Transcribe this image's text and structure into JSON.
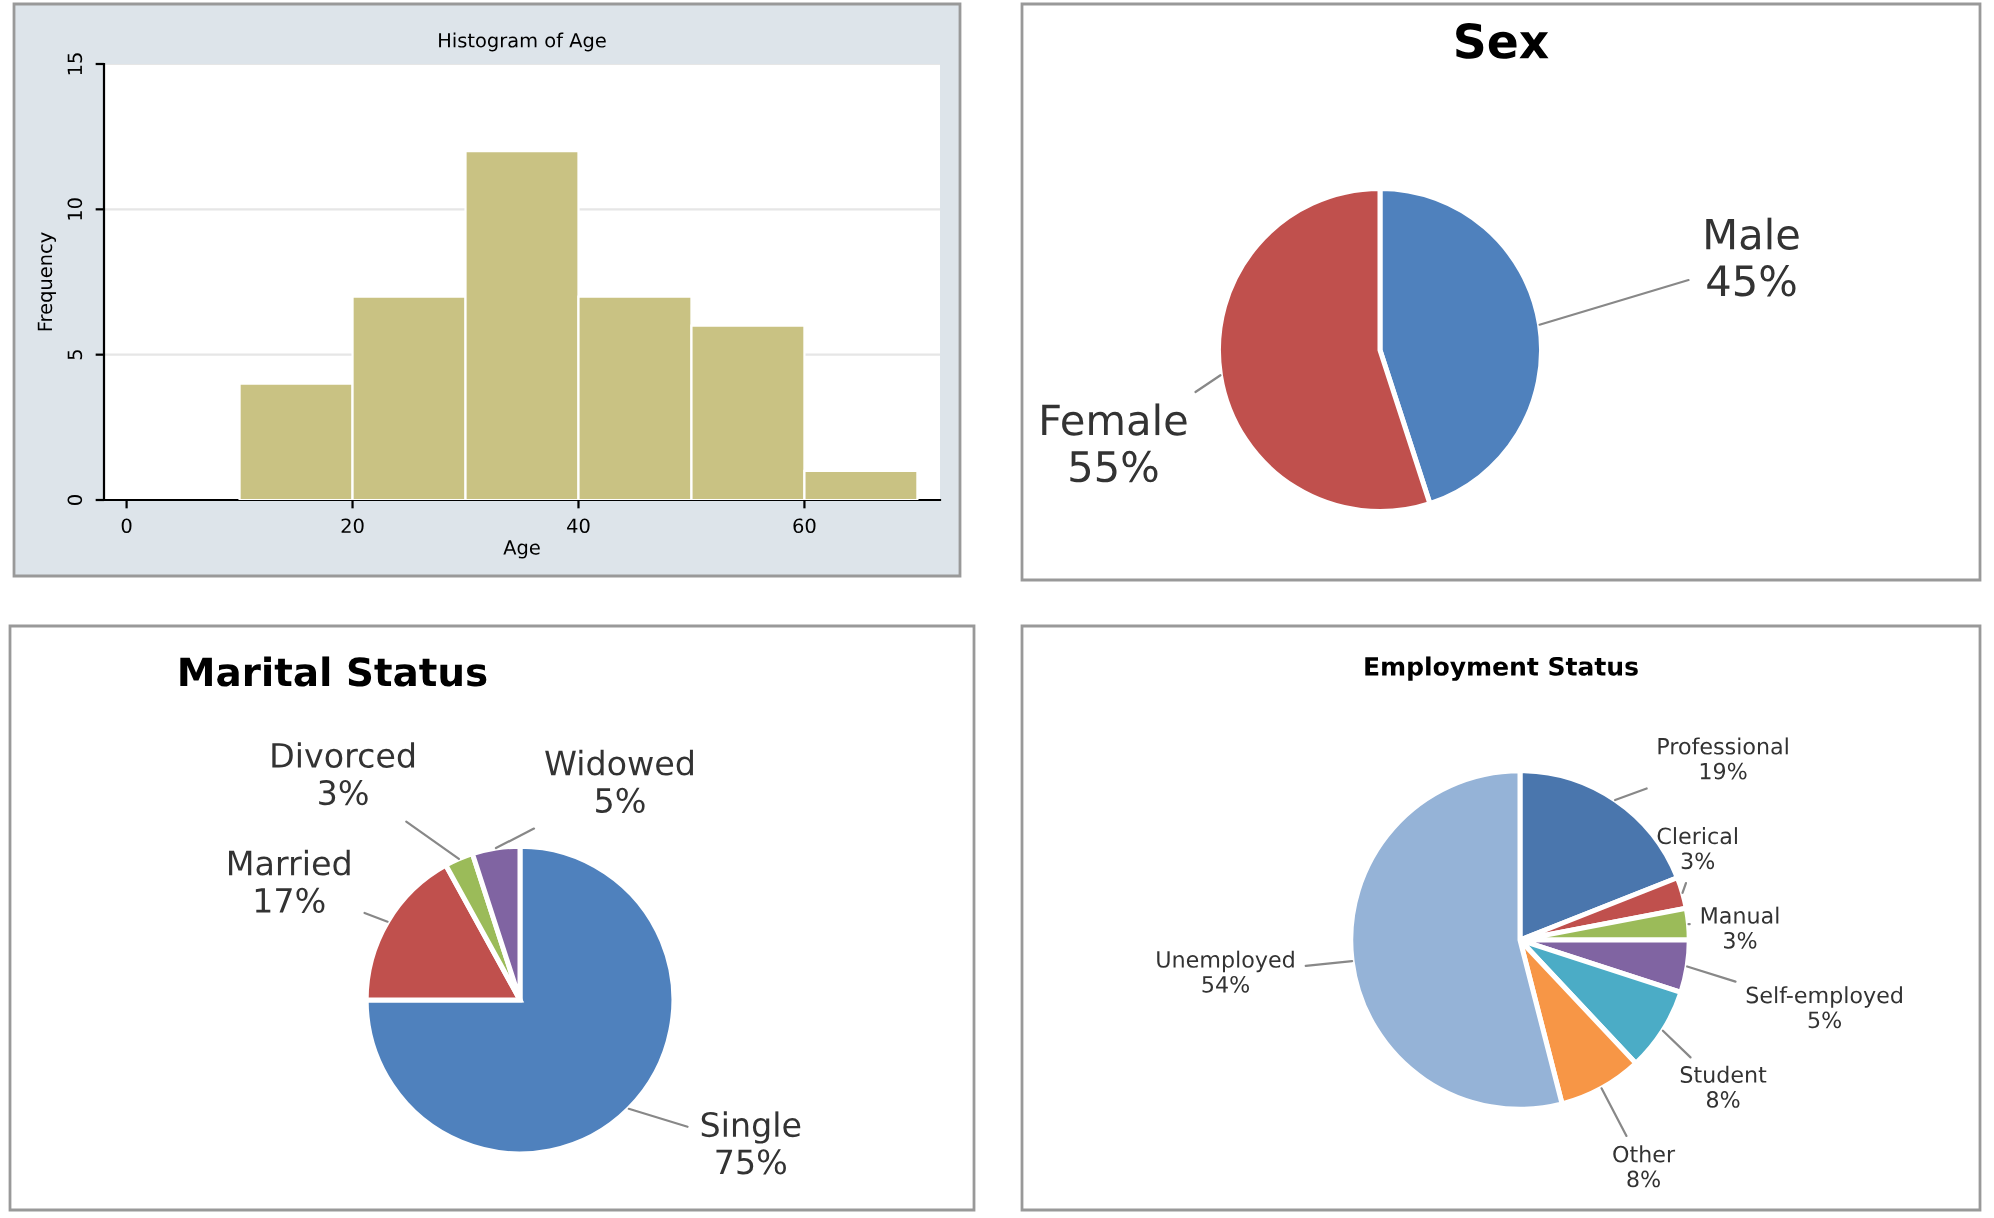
{
  "chart_data": [
    {
      "type": "histogram",
      "title": "Histogram of Age",
      "xlabel": "Age",
      "ylabel": "Frequency",
      "bins": [
        10,
        20,
        30,
        40,
        50,
        60,
        70
      ],
      "values": [
        4,
        7,
        12,
        7,
        6,
        1
      ],
      "color": "#c9c283",
      "xlim": [
        -2,
        72
      ],
      "ylim": [
        0,
        15
      ],
      "xticks": [
        0,
        20,
        40,
        60
      ],
      "yticks": [
        0,
        5,
        10,
        15
      ],
      "grid": "y"
    },
    {
      "type": "pie",
      "title": "Sex",
      "categories": [
        "Male",
        "Female"
      ],
      "values": [
        45,
        55
      ],
      "value_labels": [
        "45%",
        "55%"
      ],
      "colors": [
        "#4f81bd",
        "#c0504d"
      ]
    },
    {
      "type": "pie",
      "title": "Marital Status",
      "categories": [
        "Single",
        "Married",
        "Divorced",
        "Widowed"
      ],
      "values": [
        75,
        17,
        3,
        5
      ],
      "value_labels": [
        "75%",
        "17%",
        "3%",
        "5%"
      ],
      "colors": [
        "#4f81bd",
        "#c0504d",
        "#9bbb59",
        "#8064a2"
      ]
    },
    {
      "type": "pie",
      "title": "Employment Status",
      "categories": [
        "Professional",
        "Clerical",
        "Manual",
        "Self-employed",
        "Student",
        "Other",
        "Unemployed"
      ],
      "values": [
        19,
        3,
        3,
        5,
        8,
        8,
        54
      ],
      "value_labels": [
        "19%",
        "3%",
        "3%",
        "5%",
        "8%",
        "8%",
        "54%"
      ],
      "colors": [
        "#4a76ad",
        "#c0504d",
        "#9bbb59",
        "#8064a2",
        "#4bacc6",
        "#f79646",
        "#95b3d7"
      ]
    }
  ]
}
